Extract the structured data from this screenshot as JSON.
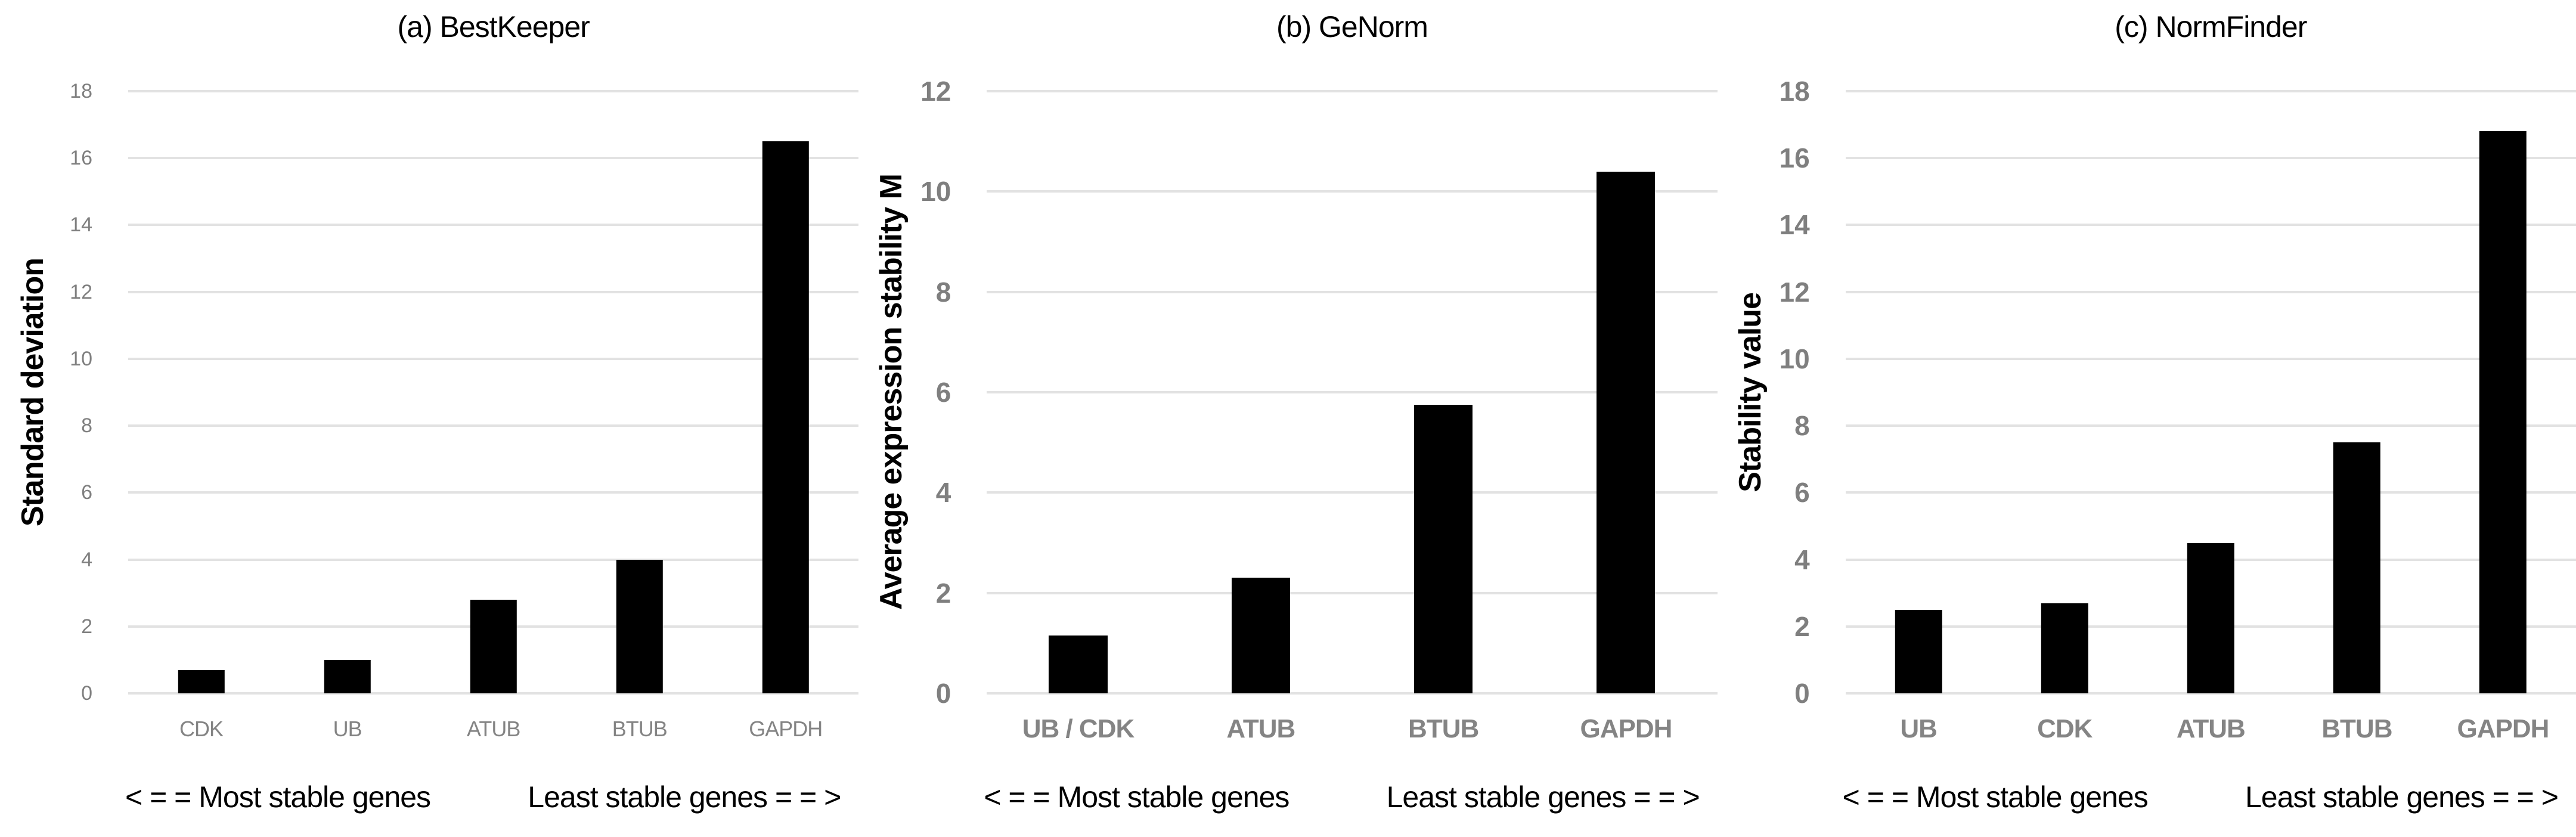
{
  "figure": {
    "annotation_left": "< = = Most stable genes",
    "annotation_right": "Least stable genes = = >"
  },
  "colors": {
    "background": "#ffffff",
    "bar": "#000000",
    "gridline": "#e2e2e2",
    "tick_label": "#7f7f7f",
    "category_label": "#848484",
    "title": "#000000"
  },
  "chart_data": [
    {
      "type": "bar",
      "title": "(a) BestKeeper",
      "ylabel": "Standard deviation",
      "xlabel": "",
      "categories": [
        "CDK",
        "UB",
        "ATUB",
        "BTUB",
        "GAPDH"
      ],
      "values": [
        0.7,
        1.0,
        2.8,
        4.0,
        16.5
      ],
      "ylim": [
        0,
        18
      ],
      "yticks": [
        0,
        2,
        4,
        6,
        8,
        10,
        12,
        14,
        16,
        18
      ],
      "grid": true,
      "legend": "none"
    },
    {
      "type": "bar",
      "title": "(b) GeNorm",
      "ylabel": "Average expression stability M",
      "xlabel": "",
      "categories": [
        "UB / CDK",
        "ATUB",
        "BTUB",
        "GAPDH"
      ],
      "values": [
        1.15,
        2.3,
        5.75,
        10.4
      ],
      "ylim": [
        0,
        12
      ],
      "yticks": [
        0,
        2,
        4,
        6,
        8,
        10,
        12
      ],
      "grid": true,
      "legend": "none"
    },
    {
      "type": "bar",
      "title": "(c) NormFinder",
      "ylabel": "Stability value",
      "xlabel": "",
      "categories": [
        "UB",
        "CDK",
        "ATUB",
        "BTUB",
        "GAPDH"
      ],
      "values": [
        2.5,
        2.7,
        4.5,
        7.5,
        16.8
      ],
      "ylim": [
        0,
        18
      ],
      "yticks": [
        0,
        2,
        4,
        6,
        8,
        10,
        12,
        14,
        16,
        18
      ],
      "grid": true,
      "legend": "none"
    }
  ]
}
